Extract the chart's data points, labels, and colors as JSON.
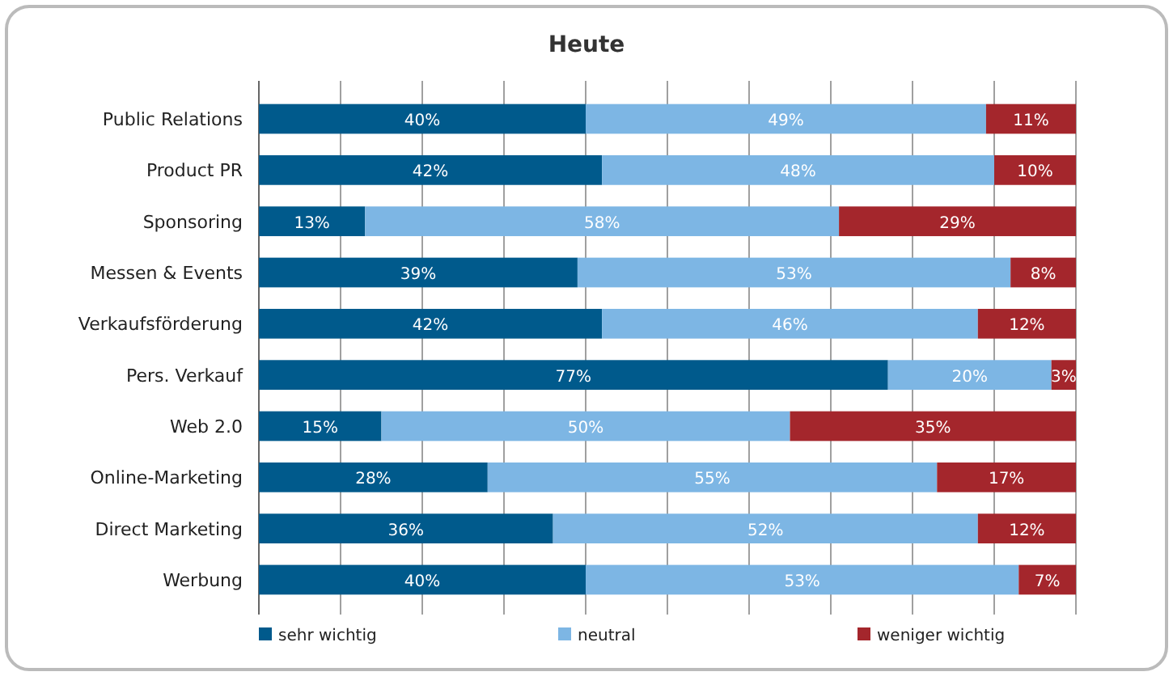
{
  "chart_data": {
    "type": "bar",
    "orientation": "horizontal",
    "stacked": true,
    "title": "Heute",
    "categories": [
      "Public Relations",
      "Product PR",
      "Sponsoring",
      "Messen & Events",
      "Verkaufsförderung",
      "Pers. Verkauf",
      "Web 2.0",
      "Online-Marketing",
      "Direct Marketing",
      "Werbung"
    ],
    "series": [
      {
        "name": "sehr wichtig",
        "color": "#005a8c",
        "values": [
          40,
          42,
          13,
          39,
          42,
          77,
          15,
          28,
          36,
          40
        ],
        "value_labels": [
          "40%",
          "42%",
          "13%",
          "39%",
          "42%",
          "77%",
          "15%",
          "28%",
          "36%",
          "40%"
        ]
      },
      {
        "name": "neutral",
        "color": "#7db6e4",
        "values": [
          49,
          48,
          58,
          53,
          46,
          20,
          50,
          55,
          52,
          53
        ],
        "value_labels": [
          "49%",
          "48%",
          "58%",
          "53%",
          "46%",
          "20%",
          "50%",
          "55%",
          "52%",
          "53%"
        ]
      },
      {
        "name": "weniger wichtig",
        "color": "#a4262c",
        "values": [
          11,
          10,
          29,
          8,
          12,
          3,
          35,
          17,
          12,
          7
        ],
        "value_labels": [
          "11%",
          "10%",
          "29%",
          "8%",
          "12%",
          "3%",
          "35%",
          "17%",
          "12%",
          "7%"
        ]
      }
    ],
    "xlim": [
      0,
      100
    ],
    "xticks": [
      {
        "value": 0,
        "label": null
      },
      {
        "value": 10,
        "label": null
      },
      {
        "value": 20,
        "label": null
      },
      {
        "value": 30,
        "label": null
      },
      {
        "value": 40,
        "label": null
      },
      {
        "value": 50,
        "label": null
      },
      {
        "value": 60,
        "label": null
      },
      {
        "value": 70,
        "label": null
      },
      {
        "value": 80,
        "label": null
      },
      {
        "value": 90,
        "label": null
      },
      {
        "value": 100,
        "label": null
      }
    ],
    "grid": "x",
    "tick_labels": "y",
    "legend": "bottom"
  }
}
